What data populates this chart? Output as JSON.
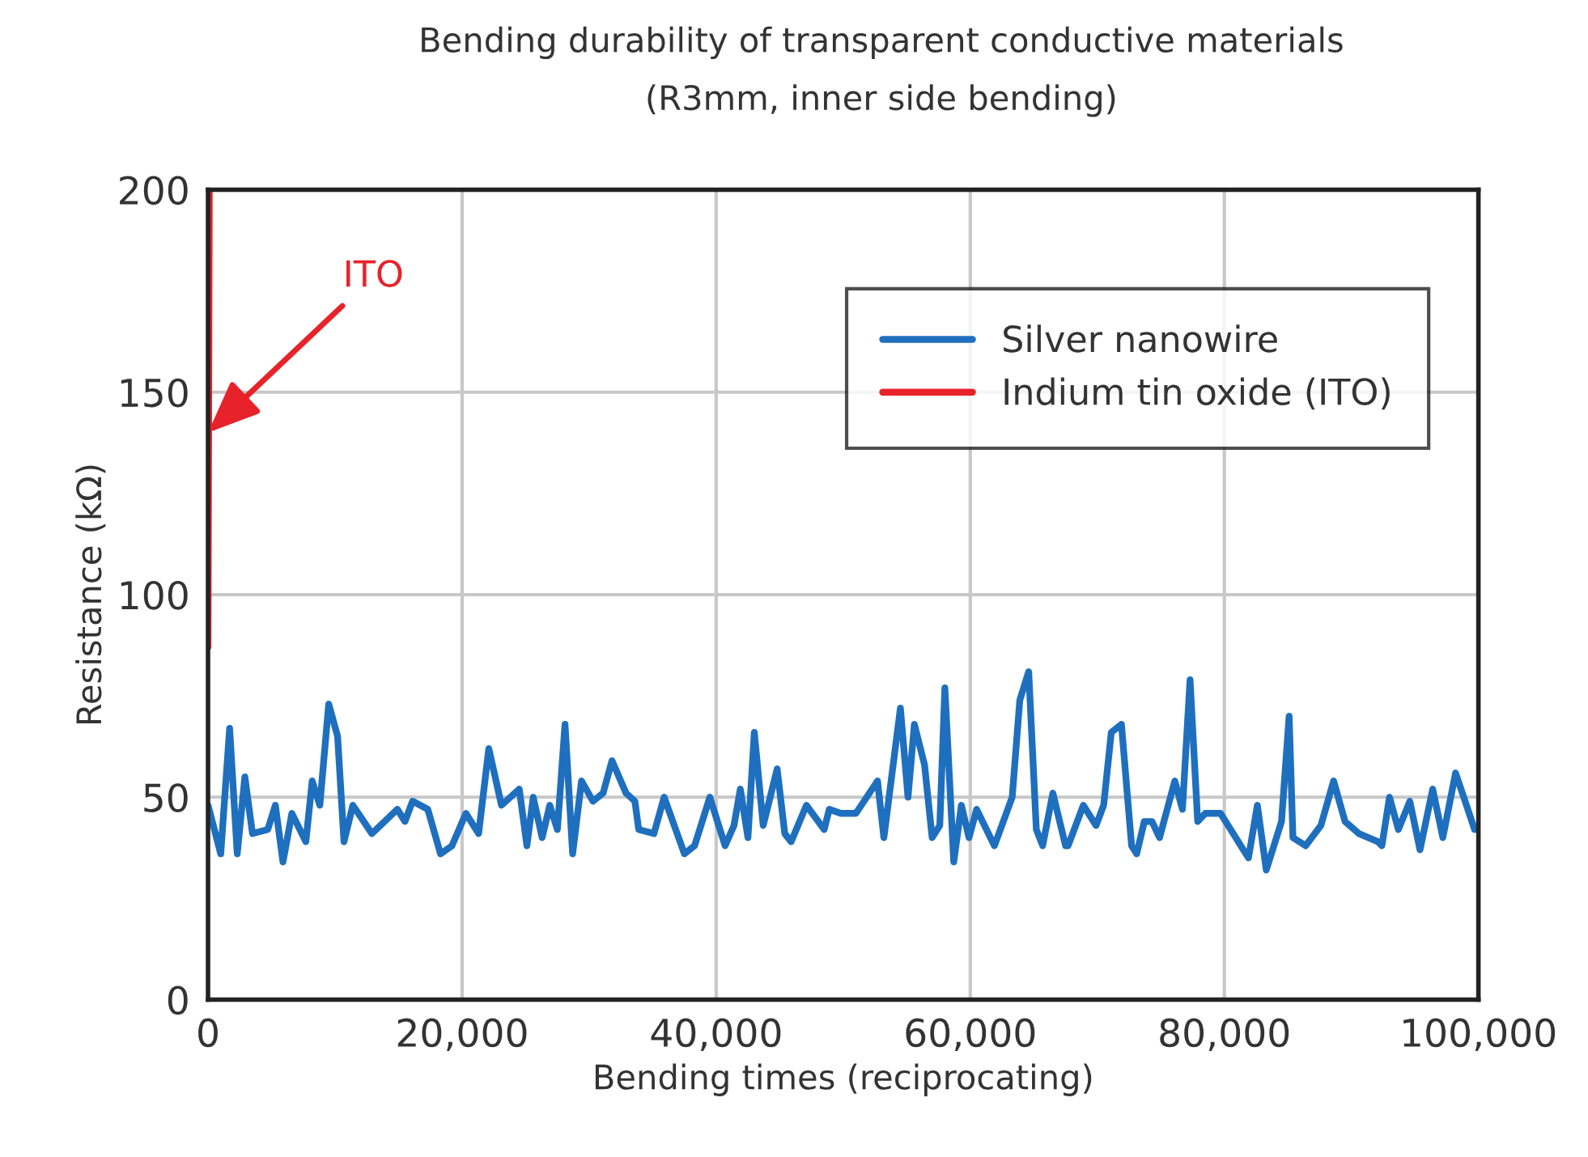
{
  "chart_data": {
    "type": "line",
    "title": "Bending durability of transparent conductive materials",
    "subtitle": "(R3mm, inner side bending)",
    "xlabel": "Bending times (reciprocating)",
    "ylabel": "Resistance (kΩ)",
    "xlim": [
      0,
      100000
    ],
    "ylim": [
      0,
      200
    ],
    "xticks": [
      0,
      {
        "value": 20000,
        "label": "20,000"
      },
      {
        "value": 40000,
        "label": "40,000"
      },
      {
        "value": 60000,
        "label": "60,000"
      },
      {
        "value": 80000,
        "label": "80,000"
      },
      {
        "value": 100000,
        "label": "100,000"
      }
    ],
    "yticks": [
      0,
      50,
      100,
      150,
      200
    ],
    "grid": true,
    "legend": "top right",
    "line_style": "solid",
    "annotations": [
      {
        "text": "ITO",
        "x": 0,
        "y": 140
      }
    ],
    "series": [
      {
        "name": "Silver nanowire",
        "color": "#1f6fbf",
        "x": [
          0,
          1000,
          1700,
          2300,
          2900,
          3500,
          4700,
          5300,
          5900,
          6600,
          7700,
          8200,
          8800,
          9500,
          10200,
          10700,
          11400,
          12900,
          14900,
          15500,
          16100,
          17300,
          18300,
          19200,
          20300,
          21300,
          22100,
          23100,
          24500,
          25100,
          25600,
          26300,
          26900,
          27500,
          28100,
          28700,
          29400,
          30300,
          31100,
          31800,
          32900,
          33600,
          33900,
          35100,
          35900,
          37500,
          38300,
          39500,
          40700,
          41400,
          41900,
          42500,
          43000,
          43700,
          44800,
          45400,
          45900,
          47100,
          48500,
          48900,
          49800,
          51000,
          52700,
          53200,
          54500,
          55100,
          55600,
          56400,
          57000,
          57600,
          58000,
          58700,
          59300,
          59900,
          60500,
          61900,
          63300,
          63900,
          64600,
          65200,
          65700,
          66500,
          67500,
          67700,
          68900,
          69900,
          70500,
          71100,
          71900,
          72700,
          73100,
          73700,
          74300,
          74900,
          76100,
          76700,
          77300,
          77900,
          78500,
          79700,
          81900,
          82600,
          83300,
          84500,
          85100,
          85400,
          86400,
          87600,
          88600,
          89500,
          90600,
          92100,
          92400,
          93000,
          93700,
          94600,
          95400,
          96400,
          97200,
          98200,
          99700
        ],
        "values": [
          48,
          36,
          67,
          36,
          55,
          41,
          42,
          48,
          34,
          46,
          39,
          54,
          48,
          73,
          65,
          39,
          48,
          41,
          47,
          44,
          49,
          47,
          36,
          38,
          46,
          41,
          62,
          48,
          52,
          38,
          50,
          40,
          48,
          42,
          68,
          36,
          54,
          49,
          51,
          59,
          51,
          49,
          42,
          41,
          50,
          36,
          38,
          50,
          38,
          43,
          52,
          40,
          66,
          43,
          57,
          41,
          39,
          48,
          42,
          47,
          46,
          46,
          54,
          40,
          72,
          50,
          68,
          58,
          40,
          43,
          77,
          34,
          48,
          40,
          47,
          38,
          50,
          74,
          81,
          42,
          38,
          51,
          38,
          38,
          48,
          43,
          48,
          66,
          68,
          38,
          36,
          44,
          44,
          40,
          54,
          47,
          79,
          44,
          46,
          46,
          35,
          48,
          32,
          44,
          70,
          40,
          38,
          43,
          54,
          44,
          41,
          39,
          38,
          50,
          42,
          49,
          37,
          52,
          40,
          56,
          42
        ]
      },
      {
        "name": "Indium tin oxide (ITO)",
        "color": "#e8222a",
        "x": [
          0,
          100
        ],
        "values": [
          87,
          200
        ]
      }
    ]
  }
}
